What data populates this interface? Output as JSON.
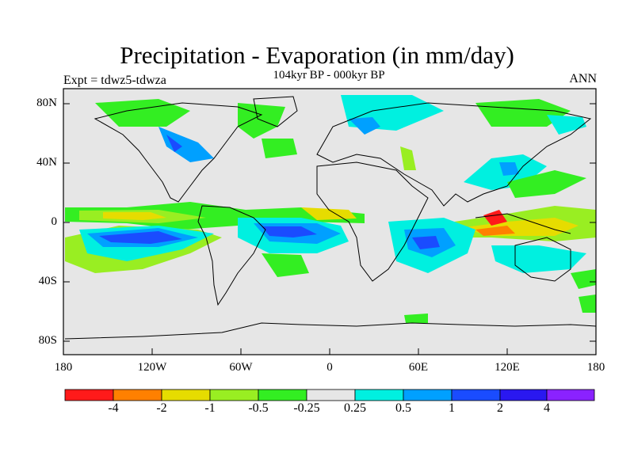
{
  "header": {
    "title": "Precipitation - Evaporation (in mm/day)",
    "subtitle": "104kyr BP - 000kyr BP",
    "experiment": "Expt = tdwz5-tdwza",
    "season": "ANN"
  },
  "map": {
    "y_ticks": [
      "80N",
      "40N",
      "0",
      "40S",
      "80S"
    ],
    "x_ticks": [
      "180",
      "120W",
      "60W",
      "0",
      "60E",
      "120E",
      "180"
    ],
    "land_color": "#e6e6e6"
  },
  "colorbar": {
    "colors": [
      "#ff1a1a",
      "#ff8000",
      "#e6dc00",
      "#99ee22",
      "#33ee22",
      "#e6e6e6",
      "#00f0e0",
      "#00a0ff",
      "#1a4cff",
      "#2a18f0",
      "#8a22ff"
    ],
    "labels": [
      "-4",
      "-2",
      "-1",
      "-0.5",
      "-0.25",
      "0.25",
      "0.5",
      "1",
      "2",
      "4"
    ]
  },
  "legend_colors": {
    "dry_strong": "#ff1a1a",
    "dry": "#ffcc00",
    "neutral": "#e6e6e6",
    "wet": "#00a0ff",
    "wet_strong": "#1a4cff"
  }
}
